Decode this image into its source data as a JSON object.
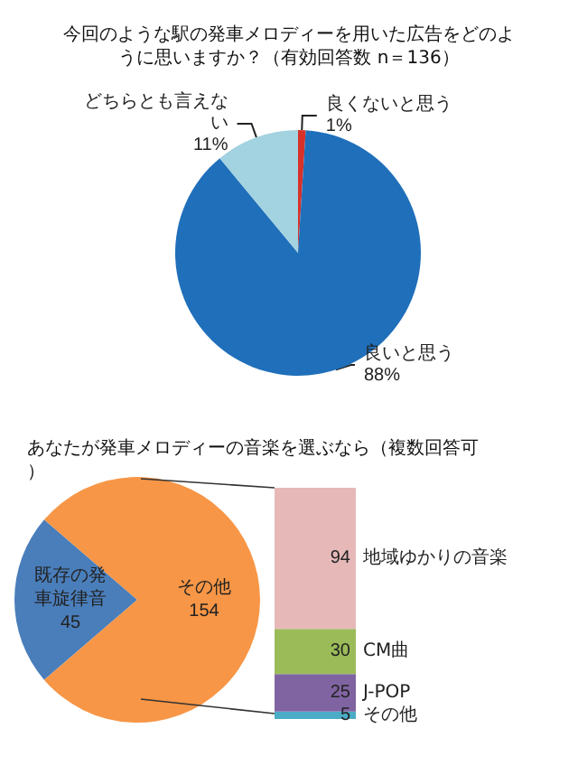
{
  "chart_data": [
    {
      "type": "pie",
      "title": "今回のような駅の発車メロディーを用いた広告をどのように思いますか？（有効回答数 n＝136）",
      "categories": [
        "良くないと思う",
        "良いと思う",
        "どちらとも言えない"
      ],
      "values": [
        1,
        88,
        11
      ],
      "colors": [
        "#d7312a",
        "#1f6fba",
        "#a3d2e0"
      ],
      "value_labels": [
        "1%",
        "88%",
        "11%"
      ]
    },
    {
      "type": "pie",
      "title": "あなたが発車メロディーの音楽を選ぶなら（複数回答可）",
      "categories": [
        "既存の発車旋律音",
        "その他"
      ],
      "values": [
        45,
        154
      ],
      "colors": [
        "#4a7ebb",
        "#f79646"
      ],
      "data_labels": true
    },
    {
      "type": "bar",
      "stacked": true,
      "categories": [
        null
      ],
      "data_labels": true,
      "series": [
        {
          "name": "その他",
          "color": "#4bacc6",
          "values": [
            5
          ]
        },
        {
          "name": "J-POP",
          "color": "#8064a2",
          "values": [
            25
          ]
        },
        {
          "name": "CM曲",
          "color": "#9bbb59",
          "values": [
            30
          ]
        },
        {
          "name": "地域ゆかりの音楽",
          "color": "#e6b9b8",
          "values": [
            94
          ]
        }
      ]
    }
  ]
}
